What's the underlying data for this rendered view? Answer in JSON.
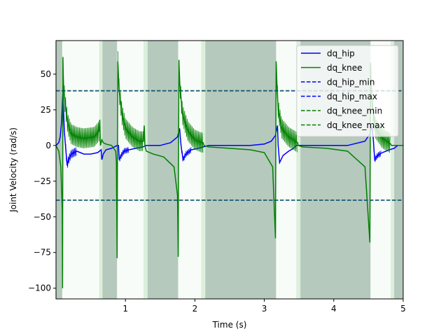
{
  "chart_data": {
    "type": "line",
    "xlabel": "Time (s)",
    "ylabel": "Joint Velocity (rad/s)",
    "xlim": [
      0.0,
      5.0
    ],
    "ylim": [
      -107.5,
      73.5
    ],
    "x_ticks": [
      1,
      2,
      3,
      4,
      5
    ],
    "x_tick_labels": [
      "1",
      "2",
      "3",
      "4",
      "5"
    ],
    "y_ticks": [
      -100,
      -75,
      -50,
      -25,
      0,
      25,
      50
    ],
    "y_tick_labels": [
      "−100",
      "−75",
      "−50",
      "−25",
      "0",
      "25",
      "50"
    ],
    "grid": false,
    "legend_position": "top-right",
    "colors": {
      "hip": "#0000ff",
      "knee": "#008000"
    },
    "series": [
      {
        "name": "dq_hip",
        "style": "solid",
        "color": "#0000ff",
        "x": [
          0.0,
          0.04,
          0.06,
          0.08,
          0.1,
          0.12,
          0.16,
          0.18,
          0.22,
          0.26,
          0.3,
          0.35,
          0.4,
          0.5,
          0.6,
          0.65,
          0.66,
          0.68,
          0.72,
          0.8,
          0.88,
          0.9,
          0.91,
          0.94,
          0.98,
          1.05,
          1.15,
          1.25,
          1.3,
          1.35,
          1.5,
          1.65,
          1.75,
          1.78,
          1.8,
          1.83,
          1.87,
          1.95,
          2.05,
          2.12,
          2.2,
          2.5,
          2.8,
          3.0,
          3.1,
          3.16,
          3.19,
          3.2,
          3.22,
          3.27,
          3.35,
          3.42,
          3.46,
          3.5,
          3.8,
          4.2,
          4.45,
          4.52,
          4.55,
          4.57,
          4.59,
          4.63,
          4.7,
          4.8,
          4.87,
          4.92,
          5.0
        ],
        "y": [
          0,
          2,
          6,
          16,
          38,
          10,
          -14,
          -10,
          -6,
          -5,
          -4,
          -5,
          -6,
          -6,
          -5,
          -3,
          -10,
          -6,
          -3,
          -2,
          0,
          0,
          -10,
          -7,
          -4,
          -3,
          -2,
          -1,
          0,
          0,
          0,
          2,
          6,
          12,
          0,
          -10,
          -6,
          -3,
          -2,
          -1,
          0,
          0,
          0,
          1,
          3,
          7,
          14,
          0,
          -12,
          -7,
          -4,
          -2,
          0,
          0,
          0,
          0,
          3,
          8,
          14,
          4,
          -10,
          -7,
          -5,
          -3,
          -2,
          0,
          0
        ]
      },
      {
        "name": "dq_knee",
        "style": "solid",
        "color": "#008000",
        "x": [
          0.0,
          0.04,
          0.07,
          0.09,
          0.095,
          0.1,
          0.105,
          0.11,
          0.13,
          0.17,
          0.22,
          0.3,
          0.4,
          0.55,
          0.62,
          0.63,
          0.64,
          0.66,
          0.68,
          0.72,
          0.8,
          0.86,
          0.87,
          0.88,
          0.89,
          0.91,
          0.95,
          1.0,
          1.1,
          1.2,
          1.26,
          1.27,
          1.28,
          1.3,
          1.4,
          1.55,
          1.7,
          1.75,
          1.76,
          1.77,
          1.78,
          1.82,
          1.9,
          2.0,
          2.1,
          2.12,
          2.13,
          2.2,
          2.5,
          2.8,
          3.0,
          3.12,
          3.16,
          3.17,
          3.18,
          3.19,
          3.2,
          3.25,
          3.35,
          3.45,
          3.48,
          3.49,
          3.55,
          3.9,
          4.2,
          4.45,
          4.52,
          4.53,
          4.54,
          4.56,
          4.6,
          4.7,
          4.8,
          4.82,
          4.83,
          4.9,
          5.0
        ],
        "y": [
          0,
          -4,
          -15,
          -45,
          -100,
          62,
          50,
          40,
          30,
          15,
          8,
          6,
          5,
          6,
          10,
          18,
          0,
          4,
          2,
          1,
          0,
          -4,
          -12,
          -79,
          59,
          38,
          22,
          12,
          6,
          3,
          3,
          14,
          0,
          -4,
          -6,
          -8,
          -15,
          -35,
          -78,
          60,
          45,
          22,
          10,
          4,
          2,
          2,
          0,
          -1,
          -2,
          -3,
          -5,
          -15,
          -65,
          59,
          45,
          35,
          25,
          12,
          6,
          3,
          2,
          0,
          -1,
          -2,
          -4,
          -15,
          -68,
          58,
          40,
          25,
          12,
          5,
          2,
          1,
          0,
          0,
          0
        ]
      },
      {
        "name": "dq_hip_min",
        "style": "dashed",
        "color": "#0000ff",
        "y_const": -38.4
      },
      {
        "name": "dq_hip_max",
        "style": "dashed",
        "color": "#0000ff",
        "y_const": 38.4
      },
      {
        "name": "dq_knee_min",
        "style": "dashed",
        "color": "#008000",
        "y_const": -38.2
      },
      {
        "name": "dq_knee_max",
        "style": "dashed",
        "color": "#008000",
        "y_const": 38.2
      }
    ],
    "oscillation_bands": [
      {
        "series": "dq_knee",
        "x_start": 0.12,
        "x_end": 0.62,
        "amplitude": 7
      },
      {
        "series": "dq_knee",
        "x_start": 0.89,
        "x_end": 1.26,
        "amplitude": 7
      },
      {
        "series": "dq_knee",
        "x_start": 1.78,
        "x_end": 2.12,
        "amplitude": 7
      },
      {
        "series": "dq_knee",
        "x_start": 3.19,
        "x_end": 3.48,
        "amplitude": 7
      },
      {
        "series": "dq_knee",
        "x_start": 4.54,
        "x_end": 4.82,
        "amplitude": 7
      },
      {
        "series": "dq_hip",
        "x_start": 0.14,
        "x_end": 0.3,
        "amplitude": 3
      },
      {
        "series": "dq_hip",
        "x_start": 0.91,
        "x_end": 1.05,
        "amplitude": 2
      },
      {
        "series": "dq_hip",
        "x_start": 1.8,
        "x_end": 1.95,
        "amplitude": 2
      },
      {
        "series": "dq_hip",
        "x_start": 4.57,
        "x_end": 4.68,
        "amplitude": 2
      }
    ],
    "background_spans": [
      {
        "x_start": 0.0,
        "x_end": 0.09,
        "color": "#b5c9bd"
      },
      {
        "x_start": 0.09,
        "x_end": 0.62,
        "color": "#f8fcf8"
      },
      {
        "x_start": 0.62,
        "x_end": 0.67,
        "color": "#dcefdc"
      },
      {
        "x_start": 0.67,
        "x_end": 0.88,
        "color": "#b5c9bd"
      },
      {
        "x_start": 0.88,
        "x_end": 1.26,
        "color": "#f8fcf8"
      },
      {
        "x_start": 1.26,
        "x_end": 1.32,
        "color": "#dcefdc"
      },
      {
        "x_start": 1.32,
        "x_end": 1.76,
        "color": "#b5c9bd"
      },
      {
        "x_start": 1.76,
        "x_end": 2.09,
        "color": "#f8fcf8"
      },
      {
        "x_start": 2.09,
        "x_end": 2.15,
        "color": "#dcefdc"
      },
      {
        "x_start": 2.15,
        "x_end": 3.17,
        "color": "#b5c9bd"
      },
      {
        "x_start": 3.17,
        "x_end": 3.46,
        "color": "#f8fcf8"
      },
      {
        "x_start": 3.46,
        "x_end": 3.52,
        "color": "#dcefdc"
      },
      {
        "x_start": 3.52,
        "x_end": 4.53,
        "color": "#b5c9bd"
      },
      {
        "x_start": 4.53,
        "x_end": 4.82,
        "color": "#f8fcf8"
      },
      {
        "x_start": 4.82,
        "x_end": 4.87,
        "color": "#dcefdc"
      },
      {
        "x_start": 4.87,
        "x_end": 5.0,
        "color": "#b5c9bd"
      }
    ]
  }
}
